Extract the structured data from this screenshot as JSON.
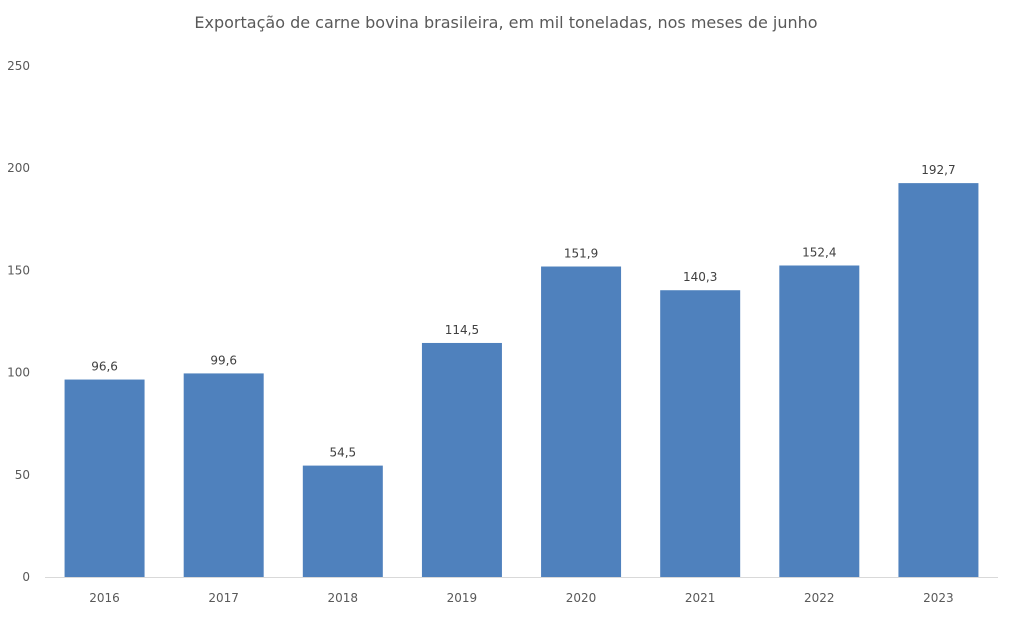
{
  "chart_data": {
    "type": "bar",
    "title": "Exportação de carne bovina brasileira, em mil toneladas, nos meses de junho",
    "xlabel": "",
    "ylabel": "",
    "categories": [
      "2016",
      "2017",
      "2018",
      "2019",
      "2020",
      "2021",
      "2022",
      "2023"
    ],
    "values": [
      96.6,
      99.6,
      54.5,
      114.5,
      151.9,
      140.3,
      152.4,
      192.7
    ],
    "data_labels": [
      "96,6",
      "99,6",
      "54,5",
      "114,5",
      "151,9",
      "140,3",
      "152,4",
      "192,7"
    ],
    "ylim": [
      0,
      250
    ],
    "yticks": [
      0,
      50,
      100,
      150,
      200,
      250
    ],
    "ytick_labels": [
      "0",
      "50",
      "100",
      "150",
      "200",
      "250"
    ],
    "grid": false,
    "legend": "none",
    "bar_color": "#4f81bd"
  }
}
